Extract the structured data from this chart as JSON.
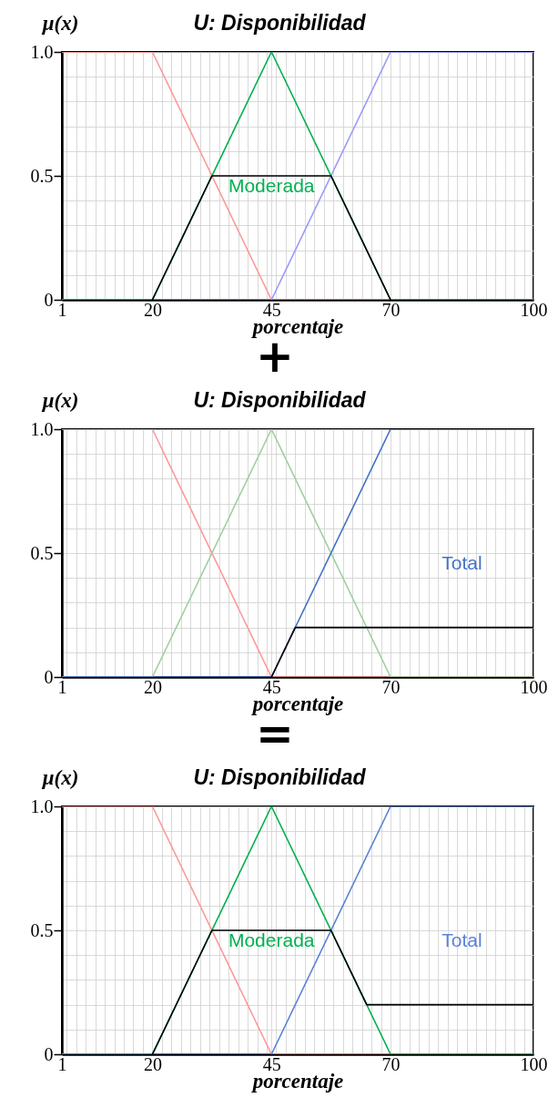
{
  "chart_data": [
    {
      "type": "line",
      "title": "U: Disponibilidad",
      "xlabel": "porcentaje",
      "ylabel": "μ(x)",
      "xlim": [
        1,
        100
      ],
      "xticks": [
        {
          "value": 1,
          "label": "1"
        },
        {
          "value": 2,
          "label": null
        },
        {
          "value": 4,
          "label": null
        },
        {
          "value": 6,
          "label": null
        },
        {
          "value": 8,
          "label": null
        },
        {
          "value": 10,
          "label": null
        },
        {
          "value": 12,
          "label": null
        },
        {
          "value": 14,
          "label": null
        },
        {
          "value": 16,
          "label": null
        },
        {
          "value": 18,
          "label": null
        },
        {
          "value": 20,
          "label": "20"
        },
        {
          "value": 22,
          "label": null
        },
        {
          "value": 24,
          "label": null
        },
        {
          "value": 26,
          "label": null
        },
        {
          "value": 28,
          "label": null
        },
        {
          "value": 30,
          "label": null
        },
        {
          "value": 32,
          "label": null
        },
        {
          "value": 34,
          "label": null
        },
        {
          "value": 36,
          "label": null
        },
        {
          "value": 38,
          "label": null
        },
        {
          "value": 40,
          "label": null
        },
        {
          "value": 42,
          "label": null
        },
        {
          "value": 44,
          "label": null
        },
        {
          "value": 45,
          "label": "45"
        },
        {
          "value": 46,
          "label": null
        },
        {
          "value": 48,
          "label": null
        },
        {
          "value": 50,
          "label": null
        },
        {
          "value": 52,
          "label": null
        },
        {
          "value": 54,
          "label": null
        },
        {
          "value": 56,
          "label": null
        },
        {
          "value": 58,
          "label": null
        },
        {
          "value": 60,
          "label": null
        },
        {
          "value": 62,
          "label": null
        },
        {
          "value": 64,
          "label": null
        },
        {
          "value": 66,
          "label": null
        },
        {
          "value": 68,
          "label": null
        },
        {
          "value": 70,
          "label": "70"
        },
        {
          "value": 72,
          "label": null
        },
        {
          "value": 74,
          "label": null
        },
        {
          "value": 76,
          "label": null
        },
        {
          "value": 78,
          "label": null
        },
        {
          "value": 80,
          "label": null
        },
        {
          "value": 82,
          "label": null
        },
        {
          "value": 84,
          "label": null
        },
        {
          "value": 86,
          "label": null
        },
        {
          "value": 88,
          "label": null
        },
        {
          "value": 90,
          "label": null
        },
        {
          "value": 92,
          "label": null
        },
        {
          "value": 94,
          "label": null
        },
        {
          "value": 96,
          "label": null
        },
        {
          "value": 98,
          "label": null
        },
        {
          "value": 100,
          "label": "100"
        }
      ],
      "ylim": [
        0,
        1
      ],
      "yticks": [
        {
          "value": 0,
          "label": "0"
        },
        {
          "value": 0.1,
          "label": null
        },
        {
          "value": 0.2,
          "label": null
        },
        {
          "value": 0.3,
          "label": null
        },
        {
          "value": 0.4,
          "label": null
        },
        {
          "value": 0.5,
          "label": "0.5"
        },
        {
          "value": 0.6,
          "label": null
        },
        {
          "value": 0.7,
          "label": null
        },
        {
          "value": 0.8,
          "label": null
        },
        {
          "value": 0.9,
          "label": null
        },
        {
          "value": 1,
          "label": "1.0"
        }
      ],
      "grid": true,
      "series": [
        {
          "color": "#ff9999",
          "x": [
            1,
            20,
            45,
            100
          ],
          "values": [
            1,
            1,
            0,
            0
          ]
        },
        {
          "color": "#9999ff",
          "x": [
            1,
            45,
            70,
            100
          ],
          "values": [
            0,
            0,
            1,
            1
          ]
        },
        {
          "name": "Moderada",
          "color": "#00b050",
          "x": [
            1,
            20,
            45,
            70,
            100
          ],
          "values": [
            0,
            0,
            1,
            0,
            0
          ]
        },
        {
          "color": "#000000",
          "x": [
            20,
            32.5,
            57.5,
            70
          ],
          "values": [
            0,
            0.5,
            0.5,
            0
          ]
        }
      ],
      "annotations": [
        "+"
      ]
    },
    {
      "type": "line",
      "title": "U: Disponibilidad",
      "xlabel": "porcentaje",
      "ylabel": "μ(x)",
      "xlim": [
        1,
        100
      ],
      "xticks": [
        {
          "value": 1,
          "label": "1"
        },
        {
          "value": 2,
          "label": null
        },
        {
          "value": 4,
          "label": null
        },
        {
          "value": 6,
          "label": null
        },
        {
          "value": 8,
          "label": null
        },
        {
          "value": 10,
          "label": null
        },
        {
          "value": 12,
          "label": null
        },
        {
          "value": 14,
          "label": null
        },
        {
          "value": 16,
          "label": null
        },
        {
          "value": 18,
          "label": null
        },
        {
          "value": 20,
          "label": "20"
        },
        {
          "value": 22,
          "label": null
        },
        {
          "value": 24,
          "label": null
        },
        {
          "value": 26,
          "label": null
        },
        {
          "value": 28,
          "label": null
        },
        {
          "value": 30,
          "label": null
        },
        {
          "value": 32,
          "label": null
        },
        {
          "value": 34,
          "label": null
        },
        {
          "value": 36,
          "label": null
        },
        {
          "value": 38,
          "label": null
        },
        {
          "value": 40,
          "label": null
        },
        {
          "value": 42,
          "label": null
        },
        {
          "value": 44,
          "label": null
        },
        {
          "value": 45,
          "label": "45"
        },
        {
          "value": 46,
          "label": null
        },
        {
          "value": 48,
          "label": null
        },
        {
          "value": 50,
          "label": null
        },
        {
          "value": 52,
          "label": null
        },
        {
          "value": 54,
          "label": null
        },
        {
          "value": 56,
          "label": null
        },
        {
          "value": 58,
          "label": null
        },
        {
          "value": 60,
          "label": null
        },
        {
          "value": 62,
          "label": null
        },
        {
          "value": 64,
          "label": null
        },
        {
          "value": 66,
          "label": null
        },
        {
          "value": 68,
          "label": null
        },
        {
          "value": 70,
          "label": "70"
        },
        {
          "value": 72,
          "label": null
        },
        {
          "value": 74,
          "label": null
        },
        {
          "value": 76,
          "label": null
        },
        {
          "value": 78,
          "label": null
        },
        {
          "value": 80,
          "label": null
        },
        {
          "value": 82,
          "label": null
        },
        {
          "value": 84,
          "label": null
        },
        {
          "value": 86,
          "label": null
        },
        {
          "value": 88,
          "label": null
        },
        {
          "value": 90,
          "label": null
        },
        {
          "value": 92,
          "label": null
        },
        {
          "value": 94,
          "label": null
        },
        {
          "value": 96,
          "label": null
        },
        {
          "value": 98,
          "label": null
        },
        {
          "value": 100,
          "label": "100"
        }
      ],
      "ylim": [
        0,
        1
      ],
      "yticks": [
        {
          "value": 0,
          "label": "0"
        },
        {
          "value": 0.1,
          "label": null
        },
        {
          "value": 0.2,
          "label": null
        },
        {
          "value": 0.3,
          "label": null
        },
        {
          "value": 0.4,
          "label": null
        },
        {
          "value": 0.5,
          "label": "0.5"
        },
        {
          "value": 0.6,
          "label": null
        },
        {
          "value": 0.7,
          "label": null
        },
        {
          "value": 0.8,
          "label": null
        },
        {
          "value": 0.9,
          "label": null
        },
        {
          "value": 1,
          "label": "1.0"
        }
      ],
      "grid": true,
      "series": [
        {
          "color": "#ff9999",
          "x": [
            1,
            20,
            45,
            100
          ],
          "values": [
            1,
            1,
            0,
            0
          ]
        },
        {
          "color": "#9fd09f",
          "x": [
            1,
            20,
            45,
            70,
            100
          ],
          "values": [
            0,
            0,
            1,
            0,
            0
          ]
        },
        {
          "name": "Total",
          "color": "#4472c4",
          "x": [
            1,
            45,
            70,
            100
          ],
          "values": [
            0,
            0,
            1,
            1
          ]
        },
        {
          "color": "#000000",
          "x": [
            45,
            50,
            100
          ],
          "values": [
            0,
            0.2,
            0.2
          ]
        }
      ],
      "annotations": [
        "="
      ]
    },
    {
      "type": "line",
      "title": "U: Disponibilidad",
      "xlabel": "porcentaje",
      "ylabel": "μ(x)",
      "xlim": [
        1,
        100
      ],
      "xticks": [
        {
          "value": 1,
          "label": "1"
        },
        {
          "value": 2,
          "label": null
        },
        {
          "value": 4,
          "label": null
        },
        {
          "value": 6,
          "label": null
        },
        {
          "value": 8,
          "label": null
        },
        {
          "value": 10,
          "label": null
        },
        {
          "value": 12,
          "label": null
        },
        {
          "value": 14,
          "label": null
        },
        {
          "value": 16,
          "label": null
        },
        {
          "value": 18,
          "label": null
        },
        {
          "value": 20,
          "label": "20"
        },
        {
          "value": 22,
          "label": null
        },
        {
          "value": 24,
          "label": null
        },
        {
          "value": 26,
          "label": null
        },
        {
          "value": 28,
          "label": null
        },
        {
          "value": 30,
          "label": null
        },
        {
          "value": 32,
          "label": null
        },
        {
          "value": 34,
          "label": null
        },
        {
          "value": 36,
          "label": null
        },
        {
          "value": 38,
          "label": null
        },
        {
          "value": 40,
          "label": null
        },
        {
          "value": 42,
          "label": null
        },
        {
          "value": 44,
          "label": null
        },
        {
          "value": 45,
          "label": "45"
        },
        {
          "value": 46,
          "label": null
        },
        {
          "value": 48,
          "label": null
        },
        {
          "value": 50,
          "label": null
        },
        {
          "value": 52,
          "label": null
        },
        {
          "value": 54,
          "label": null
        },
        {
          "value": 56,
          "label": null
        },
        {
          "value": 58,
          "label": null
        },
        {
          "value": 60,
          "label": null
        },
        {
          "value": 62,
          "label": null
        },
        {
          "value": 64,
          "label": null
        },
        {
          "value": 66,
          "label": null
        },
        {
          "value": 68,
          "label": null
        },
        {
          "value": 70,
          "label": "70"
        },
        {
          "value": 72,
          "label": null
        },
        {
          "value": 74,
          "label": null
        },
        {
          "value": 76,
          "label": null
        },
        {
          "value": 78,
          "label": null
        },
        {
          "value": 80,
          "label": null
        },
        {
          "value": 82,
          "label": null
        },
        {
          "value": 84,
          "label": null
        },
        {
          "value": 86,
          "label": null
        },
        {
          "value": 88,
          "label": null
        },
        {
          "value": 90,
          "label": null
        },
        {
          "value": 92,
          "label": null
        },
        {
          "value": 94,
          "label": null
        },
        {
          "value": 96,
          "label": null
        },
        {
          "value": 98,
          "label": null
        },
        {
          "value": 100,
          "label": "100"
        }
      ],
      "ylim": [
        0,
        1
      ],
      "yticks": [
        {
          "value": 0,
          "label": "0"
        },
        {
          "value": 0.1,
          "label": null
        },
        {
          "value": 0.2,
          "label": null
        },
        {
          "value": 0.3,
          "label": null
        },
        {
          "value": 0.4,
          "label": null
        },
        {
          "value": 0.5,
          "label": "0.5"
        },
        {
          "value": 0.6,
          "label": null
        },
        {
          "value": 0.7,
          "label": null
        },
        {
          "value": 0.8,
          "label": null
        },
        {
          "value": 0.9,
          "label": null
        },
        {
          "value": 1,
          "label": "1.0"
        }
      ],
      "grid": true,
      "series": [
        {
          "color": "#ff9999",
          "x": [
            1,
            20,
            45,
            100
          ],
          "values": [
            1,
            1,
            0,
            0
          ]
        },
        {
          "name": "Moderada",
          "color": "#00b050",
          "x": [
            1,
            20,
            45,
            70,
            100
          ],
          "values": [
            0,
            0,
            1,
            0,
            0
          ]
        },
        {
          "name": "Total",
          "color": "#5b82d8",
          "x": [
            1,
            45,
            70,
            100
          ],
          "values": [
            0,
            0,
            1,
            1
          ]
        },
        {
          "color": "#000000",
          "x": [
            20,
            32.5,
            57.5,
            65,
            100
          ],
          "values": [
            0,
            0.5,
            0.5,
            0.2,
            0.2
          ]
        }
      ]
    }
  ]
}
